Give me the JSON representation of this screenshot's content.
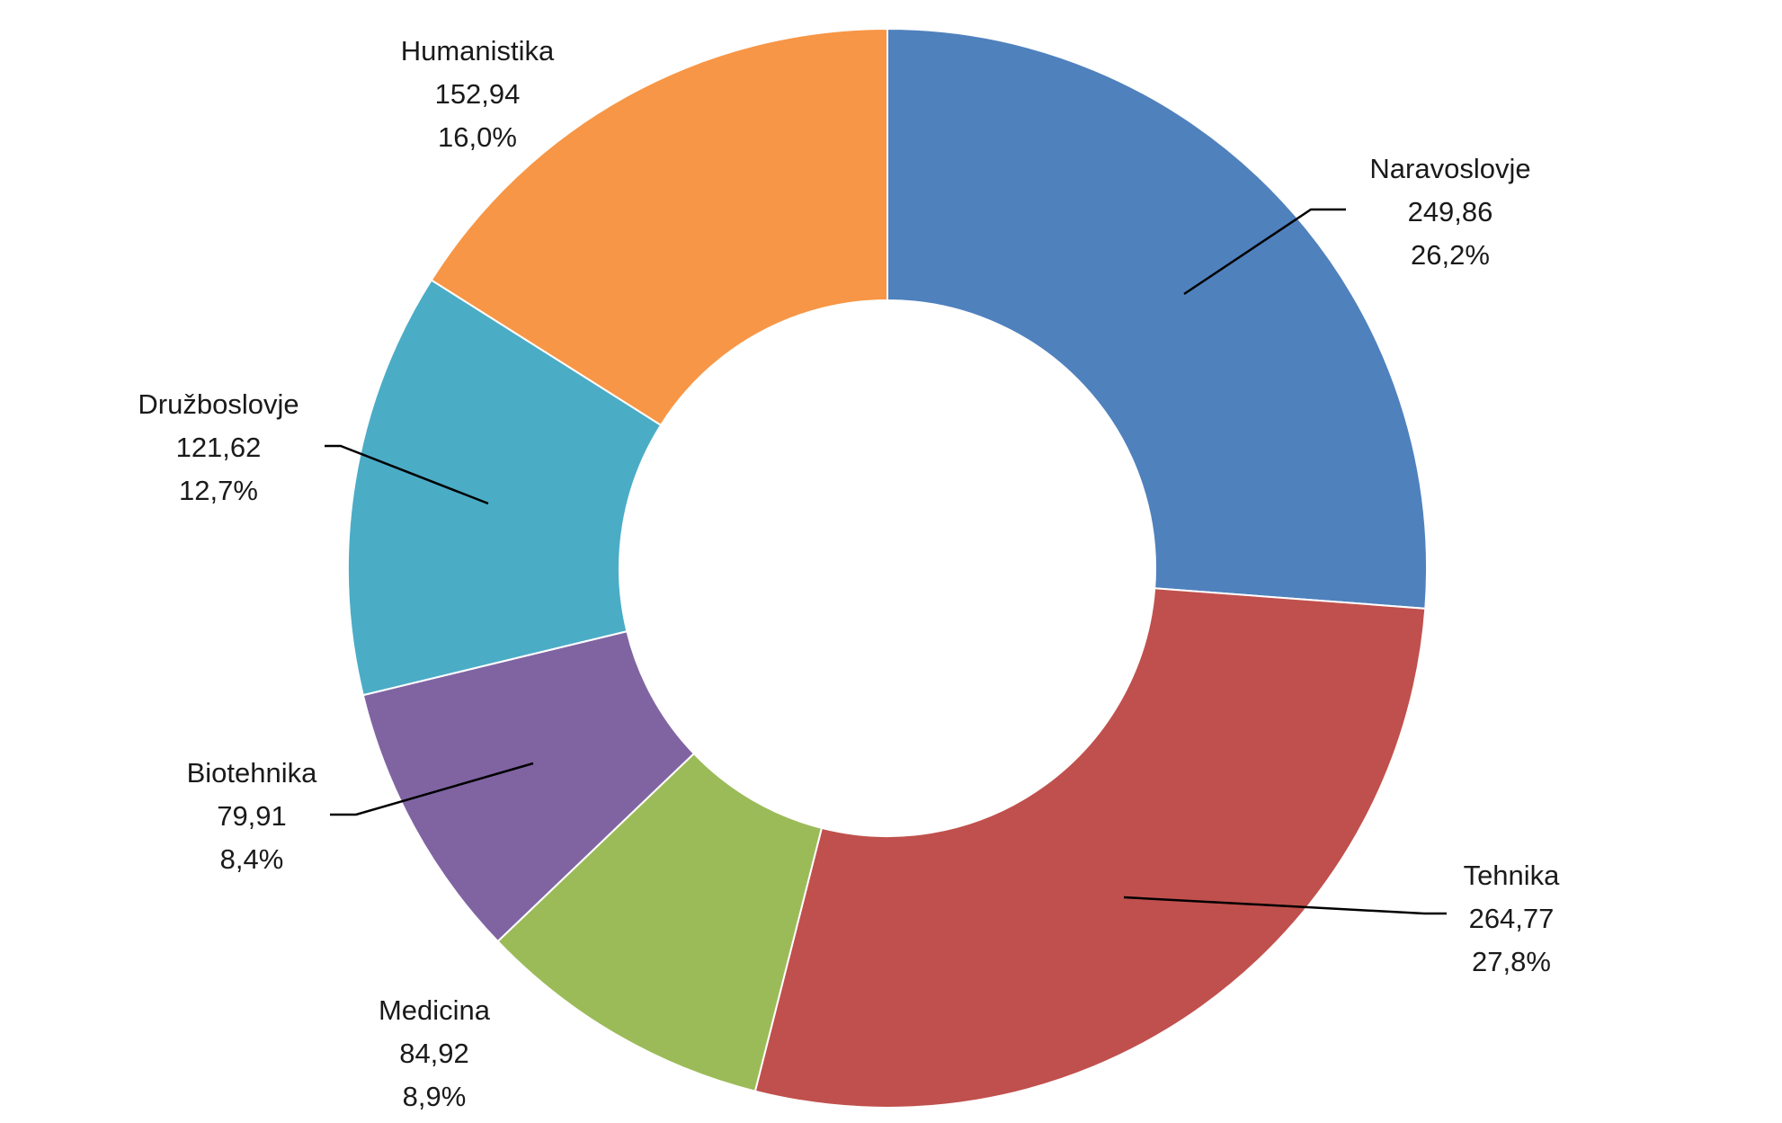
{
  "chart_data": {
    "type": "pie",
    "variant": "donut",
    "title": "",
    "start": "12 o'clock",
    "direction": "clockwise",
    "categories": [
      "Naravoslovje",
      "Tehnika",
      "Medicina",
      "Biotehnika",
      "Družboslovje",
      "Humanistika"
    ],
    "values": [
      249.86,
      264.77,
      84.92,
      79.91,
      121.62,
      152.94
    ],
    "value_labels": [
      "249,86",
      "264,77",
      "84,92",
      "79,91",
      "121,62",
      "152,94"
    ],
    "percent_labels": [
      "26,2%",
      "27,8%",
      "8,9%",
      "8,4%",
      "12,7%",
      "16,0%"
    ],
    "colors": [
      "#4F81BD",
      "#C0504D",
      "#9BBB59",
      "#8064A2",
      "#4BACC6",
      "#F79646"
    ],
    "legend": "none"
  }
}
